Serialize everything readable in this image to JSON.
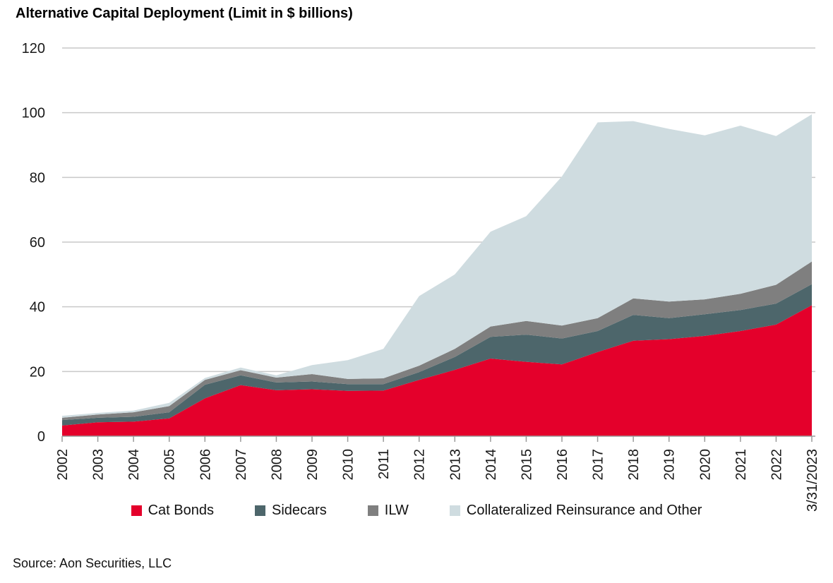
{
  "chart_data": {
    "type": "area",
    "stacked": true,
    "title": "Alternative Capital Deployment (Limit in $ billions)",
    "units": "$ billions",
    "categories": [
      "2002",
      "2003",
      "2004",
      "2005",
      "2006",
      "2007",
      "2008",
      "2009",
      "2010",
      "2011",
      "2012",
      "2013",
      "2014",
      "2015",
      "2016",
      "2017",
      "2018",
      "2019",
      "2020",
      "2021",
      "2022",
      "3/31/2023"
    ],
    "series": [
      {
        "name": "Cat Bonds",
        "color": "#e4002b",
        "values": [
          3.3,
          4.3,
          4.5,
          5.5,
          11.7,
          15.8,
          14.2,
          14.5,
          14.0,
          14.1,
          17.4,
          20.5,
          24.0,
          23.0,
          22.2,
          26.0,
          29.5,
          30.0,
          31.0,
          32.5,
          34.5,
          40.5
        ]
      },
      {
        "name": "Sidecars",
        "color": "#4d666b",
        "values": [
          1.7,
          1.4,
          1.5,
          1.9,
          4.2,
          3.0,
          2.4,
          2.4,
          2.1,
          2.0,
          2.4,
          4.0,
          6.7,
          8.4,
          8.0,
          6.5,
          8.0,
          6.5,
          6.7,
          6.5,
          6.5,
          6.5
        ]
      },
      {
        "name": "ILW",
        "color": "#7f7f7f",
        "values": [
          0.7,
          1.0,
          1.4,
          1.9,
          1.5,
          1.6,
          1.5,
          2.3,
          1.6,
          1.8,
          2.0,
          2.5,
          3.2,
          4.2,
          4.0,
          4.0,
          5.1,
          5.1,
          4.6,
          5.0,
          5.8,
          7.0
        ]
      },
      {
        "name": "Collateralized Reinsurance and Other",
        "color": "#cfdce0",
        "values": [
          0.6,
          0.5,
          0.5,
          1.0,
          0.6,
          0.8,
          0.7,
          2.8,
          5.8,
          9.1,
          21.5,
          23.0,
          29.3,
          32.4,
          46.1,
          60.5,
          54.8,
          53.4,
          50.7,
          52.0,
          46.0,
          45.5
        ]
      }
    ],
    "ylim": [
      0,
      120
    ],
    "ytick_step": 20,
    "grid": "horizontal",
    "legend_position": "bottom",
    "grid_color": "#c9c9c9",
    "axis_color": "#9b9b9b",
    "text_color": "#191919"
  },
  "source": {
    "label": "Source: Aon Securities, LLC"
  }
}
